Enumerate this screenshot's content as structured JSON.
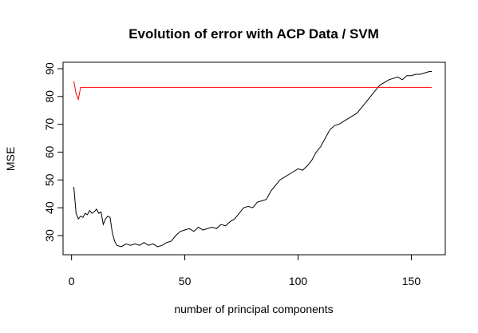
{
  "chart_data": {
    "type": "line",
    "title": "Evolution of error with ACP Data / SVM",
    "xlabel": "number of principal components",
    "ylabel": "MSE",
    "xlim": [
      1,
      159
    ],
    "ylim": [
      24,
      91
    ],
    "xticks": [
      0,
      50,
      100,
      150
    ],
    "yticks": [
      30,
      40,
      50,
      60,
      70,
      80,
      90
    ],
    "grid": false,
    "legend": "none",
    "series": [
      {
        "color": "#000000",
        "x": [
          1,
          2,
          3,
          4,
          5,
          6,
          7,
          8,
          9,
          10,
          11,
          12,
          13,
          14,
          15,
          16,
          17,
          18,
          19,
          20,
          22,
          24,
          26,
          28,
          30,
          32,
          34,
          36,
          38,
          40,
          42,
          44,
          46,
          48,
          50,
          52,
          54,
          56,
          58,
          60,
          62,
          64,
          66,
          68,
          70,
          72,
          74,
          76,
          78,
          80,
          82,
          84,
          86,
          88,
          90,
          92,
          94,
          96,
          98,
          100,
          102,
          104,
          106,
          108,
          110,
          112,
          114,
          116,
          118,
          120,
          122,
          124,
          126,
          128,
          130,
          132,
          134,
          136,
          138,
          140,
          142,
          144,
          146,
          148,
          150,
          152,
          154,
          156,
          158,
          159
        ],
        "values": [
          47.5,
          38,
          36,
          37,
          36.5,
          38,
          37.5,
          39,
          38,
          38.5,
          39.5,
          38,
          38.5,
          34,
          36,
          37,
          36.5,
          31,
          28,
          26.5,
          26,
          27,
          26.5,
          27,
          26.5,
          27.5,
          26.5,
          27,
          26,
          26.5,
          27.5,
          28,
          30,
          31.5,
          32,
          32.5,
          31.5,
          33,
          32,
          32.5,
          33,
          32.5,
          34,
          33.5,
          35,
          36,
          38,
          40,
          40.5,
          40,
          42,
          42.5,
          43,
          46,
          48,
          50,
          51,
          52,
          53,
          54,
          53.5,
          55,
          57,
          60,
          62,
          65,
          68,
          69.5,
          70,
          71,
          72,
          73,
          74,
          76,
          78,
          80,
          82,
          84,
          85,
          86,
          86.5,
          87,
          86,
          87.5,
          87.5,
          88,
          88,
          88.5,
          89,
          89
        ]
      },
      {
        "color": "#ff0000",
        "x": [
          1,
          2,
          3,
          4,
          5,
          10,
          20,
          40,
          60,
          80,
          100,
          120,
          140,
          159
        ],
        "values": [
          85.5,
          81,
          79,
          83.3,
          83.3,
          83.3,
          83.3,
          83.3,
          83.3,
          83.3,
          83.3,
          83.3,
          83.3,
          83.3
        ]
      }
    ]
  }
}
